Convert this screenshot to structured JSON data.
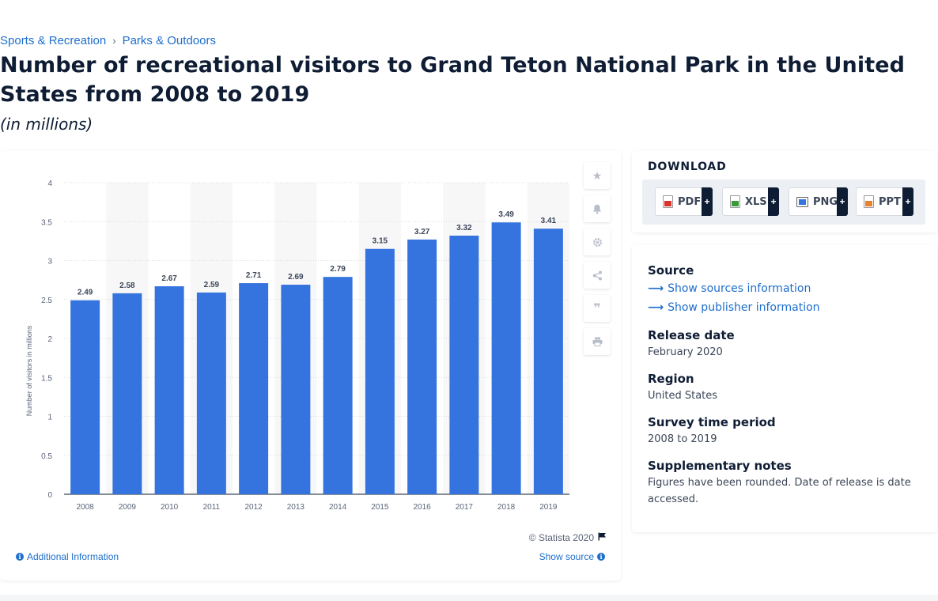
{
  "breadcrumb": [
    "Sports & Recreation",
    "Parks & Outdoors"
  ],
  "title": "Number of recreational visitors to Grand Teton National Park in the United States from 2008 to 2019",
  "subtitle": "(in millions)",
  "chart_data": {
    "type": "bar",
    "categories": [
      "2008",
      "2009",
      "2010",
      "2011",
      "2012",
      "2013",
      "2014",
      "2015",
      "2016",
      "2017",
      "2018",
      "2019"
    ],
    "values": [
      2.49,
      2.58,
      2.67,
      2.59,
      2.71,
      2.69,
      2.79,
      3.15,
      3.27,
      3.32,
      3.49,
      3.41
    ],
    "ylabel": "Number of visitors in millions",
    "ylim": [
      0,
      4
    ],
    "yticks": [
      "0",
      "0.5",
      "1",
      "1.5",
      "2",
      "2.5",
      "3",
      "3.5",
      "4"
    ],
    "bar_color": "#3574de",
    "grid": true,
    "data_labels": true
  },
  "tools": [
    "star-icon",
    "bell-icon",
    "gear-icon",
    "share-icon",
    "quote-icon",
    "print-icon"
  ],
  "copyright": "© Statista 2020",
  "additional_info": "Additional Information",
  "show_source": "Show source",
  "download": {
    "title": "DOWNLOAD",
    "buttons": [
      {
        "label": "PDF",
        "color": "#d9342b"
      },
      {
        "label": "XLS",
        "color": "#3a9a3a"
      },
      {
        "label": "PNG",
        "color": "#3574de"
      },
      {
        "label": "PPT",
        "color": "#e9822b"
      }
    ],
    "plus": "+"
  },
  "meta": {
    "source_label": "Source",
    "show_sources": "Show sources information",
    "show_publisher": "Show publisher information",
    "release_label": "Release date",
    "release_value": "February 2020",
    "region_label": "Region",
    "region_value": "United States",
    "period_label": "Survey time period",
    "period_value": "2008 to 2019",
    "notes_label": "Supplementary notes",
    "notes_value": "Figures have been rounded. Date of release is date accessed."
  },
  "colors": {
    "accent": "#1e6ecd",
    "bar": "#3574de",
    "dark": "#0f1d34"
  }
}
